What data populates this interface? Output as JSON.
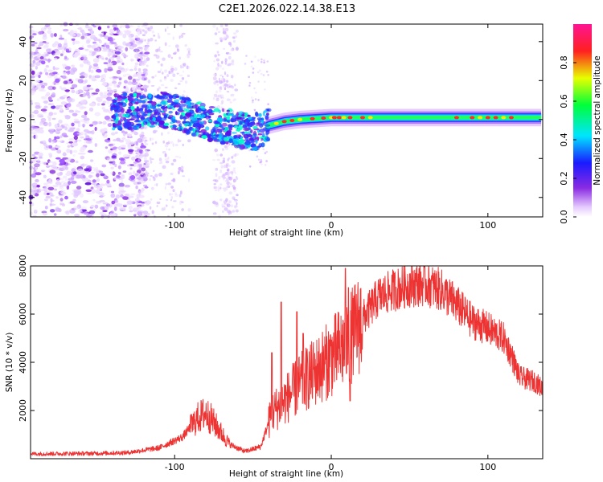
{
  "title": "C2E1.2026.022.14.38.E13",
  "chart_data": [
    {
      "type": "heatmap",
      "xlabel": "Height of straight line (km)",
      "ylabel": "Frequency (Hz)",
      "xlim": [
        -192,
        135
      ],
      "ylim": [
        -50,
        49
      ],
      "xticks": [
        -100,
        0,
        100
      ],
      "xtick_labels": [
        "-100",
        "0",
        "100"
      ],
      "yticks": [
        -40,
        -20,
        0,
        20,
        40
      ],
      "ytick_labels": [
        "-40",
        "-20",
        "0",
        "20",
        "40"
      ],
      "colorbar": {
        "label": "Normalized spectral amplitude",
        "range": [
          0,
          1
        ],
        "ticks": [
          0,
          0.2,
          0.4,
          0.6,
          0.8
        ],
        "tick_labels": [
          "0.0",
          "0.2",
          "0.4",
          "0.6",
          "0.8"
        ]
      },
      "trace": [
        {
          "x": -135,
          "f": 4
        },
        {
          "x": -110,
          "f": 5
        },
        {
          "x": -95,
          "f": 3
        },
        {
          "x": -80,
          "f": -1
        },
        {
          "x": -65,
          "f": -4
        },
        {
          "x": -50,
          "f": -7
        },
        {
          "x": -45,
          "f": -5
        },
        {
          "x": -40,
          "f": -3
        },
        {
          "x": -30,
          "f": -1
        },
        {
          "x": -20,
          "f": 0
        },
        {
          "x": 0,
          "f": 1
        },
        {
          "x": 20,
          "f": 1
        },
        {
          "x": 50,
          "f": 1
        },
        {
          "x": 80,
          "f": 1
        },
        {
          "x": 110,
          "f": 1
        },
        {
          "x": 135,
          "f": 1
        }
      ]
    },
    {
      "type": "line",
      "xlabel": "Height of straight line (km)",
      "ylabel": "SNR (10 * v/v)",
      "xlim": [
        -192,
        135
      ],
      "ylim": [
        0,
        8000
      ],
      "xticks": [
        -100,
        0,
        100
      ],
      "xtick_labels": [
        "-100",
        "0",
        "100"
      ],
      "yticks": [
        2000,
        4000,
        6000,
        8000
      ],
      "ytick_labels": [
        "2000",
        "4000",
        "6000",
        "8000"
      ],
      "color": "#ee3333",
      "envelope": [
        {
          "x": -192,
          "y": 200
        },
        {
          "x": -150,
          "y": 220
        },
        {
          "x": -130,
          "y": 250
        },
        {
          "x": -110,
          "y": 450
        },
        {
          "x": -95,
          "y": 900
        },
        {
          "x": -85,
          "y": 1700
        },
        {
          "x": -80,
          "y": 1900
        },
        {
          "x": -75,
          "y": 1500
        },
        {
          "x": -65,
          "y": 600
        },
        {
          "x": -55,
          "y": 300
        },
        {
          "x": -45,
          "y": 500
        },
        {
          "x": -38,
          "y": 1900
        },
        {
          "x": -30,
          "y": 2400
        },
        {
          "x": -20,
          "y": 3100
        },
        {
          "x": -10,
          "y": 3600
        },
        {
          "x": 0,
          "y": 4200
        },
        {
          "x": 10,
          "y": 4800
        },
        {
          "x": 20,
          "y": 5800
        },
        {
          "x": 30,
          "y": 6700
        },
        {
          "x": 40,
          "y": 7000
        },
        {
          "x": 50,
          "y": 7200
        },
        {
          "x": 60,
          "y": 7250
        },
        {
          "x": 70,
          "y": 7000
        },
        {
          "x": 80,
          "y": 6400
        },
        {
          "x": 90,
          "y": 5700
        },
        {
          "x": 100,
          "y": 5400
        },
        {
          "x": 110,
          "y": 5000
        },
        {
          "x": 115,
          "y": 4300
        },
        {
          "x": 120,
          "y": 3400
        },
        {
          "x": 125,
          "y": 3300
        },
        {
          "x": 130,
          "y": 3200
        },
        {
          "x": 135,
          "y": 2900
        }
      ],
      "spikes": [
        {
          "x": -38,
          "y": 4400
        },
        {
          "x": -32,
          "y": 6500
        },
        {
          "x": -22,
          "y": 6100
        },
        {
          "x": -18,
          "y": 5200
        },
        {
          "x": 9,
          "y": 7900
        },
        {
          "x": 11,
          "y": 7100
        },
        {
          "x": 12,
          "y": 2400
        }
      ]
    }
  ]
}
